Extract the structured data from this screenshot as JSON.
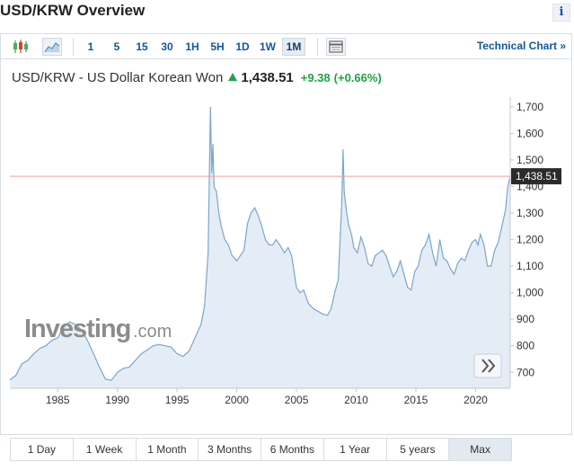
{
  "header": {
    "title": "USD/KRW Overview",
    "info_label": "i"
  },
  "toolbar": {
    "timeframes": [
      "1",
      "5",
      "15",
      "30",
      "1H",
      "5H",
      "1D",
      "1W",
      "1M"
    ],
    "active_timeframe": "1M",
    "technical_chart_label": "Technical Chart »",
    "icons": [
      "candlestick-icon",
      "area-chart-icon",
      "table-icon"
    ]
  },
  "quote": {
    "name": "USD/KRW - US Dollar Korean Won",
    "last": "1,438.51",
    "change": "+9.38",
    "change_pct": "(+0.66%)",
    "direction": "up"
  },
  "watermark": {
    "brand": "Investing",
    "suffix": ".com"
  },
  "range_buttons": [
    "1 Day",
    "1 Week",
    "1 Month",
    "3 Months",
    "6 Months",
    "1 Year",
    "5 years",
    "Max"
  ],
  "active_range": "Max",
  "colors": {
    "line": "#7aa6cc",
    "fill": "#e4edf6",
    "last_price_line": "#f0a0a0",
    "price_tag_bg": "#2b2b2b",
    "up": "#1fa346",
    "link": "#1256a0"
  },
  "chart_data": {
    "type": "area",
    "title": "USD/KRW - US Dollar Korean Won",
    "x_ticks": [
      1985,
      1990,
      1995,
      2000,
      2005,
      2010,
      2015,
      2020
    ],
    "y_ticks": [
      "1,700",
      "1,600",
      "1,500",
      "1,400",
      "1,300",
      "1,200",
      "1,100",
      "1,000",
      "900",
      "800",
      "700"
    ],
    "y_tick_values": [
      1700,
      1600,
      1500,
      1400,
      1300,
      1200,
      1100,
      1000,
      900,
      800,
      700
    ],
    "xlim": [
      1981,
      2022.9
    ],
    "ylim": [
      640,
      1730
    ],
    "last_value": 1438.51,
    "last_value_label": "1,438.51",
    "grid": false,
    "series": [
      {
        "x": [
          1981.0,
          1981.5,
          1982.0,
          1982.5,
          1983.0,
          1983.5,
          1984.0,
          1984.5,
          1985.0,
          1985.5,
          1986.0,
          1986.5,
          1987.0,
          1987.5,
          1988.0,
          1988.5,
          1989.0,
          1989.5,
          1990.0,
          1990.5,
          1991.0,
          1991.5,
          1992.0,
          1992.5,
          1993.0,
          1993.5,
          1994.0,
          1994.5,
          1995.0,
          1995.5,
          1996.0,
          1996.5,
          1997.0,
          1997.3,
          1997.6,
          1997.8,
          1997.9,
          1998.0,
          1998.1,
          1998.3,
          1998.5,
          1998.7,
          1999.0,
          1999.3,
          1999.6,
          2000.0,
          2000.3,
          2000.6,
          2000.9,
          2001.2,
          2001.5,
          2001.8,
          2002.1,
          2002.4,
          2002.7,
          2003.0,
          2003.3,
          2003.6,
          2004.0,
          2004.3,
          2004.6,
          2005.0,
          2005.3,
          2005.6,
          2006.0,
          2006.4,
          2006.8,
          2007.2,
          2007.6,
          2007.9,
          2008.2,
          2008.5,
          2008.8,
          2008.9,
          2009.0,
          2009.2,
          2009.4,
          2009.6,
          2009.8,
          2010.1,
          2010.4,
          2010.7,
          2011.0,
          2011.3,
          2011.6,
          2011.9,
          2012.2,
          2012.5,
          2012.8,
          2013.1,
          2013.4,
          2013.7,
          2014.0,
          2014.3,
          2014.6,
          2014.9,
          2015.2,
          2015.5,
          2015.8,
          2016.1,
          2016.4,
          2016.7,
          2017.0,
          2017.3,
          2017.6,
          2017.9,
          2018.2,
          2018.5,
          2018.8,
          2019.1,
          2019.4,
          2019.7,
          2020.0,
          2020.2,
          2020.4,
          2020.7,
          2021.0,
          2021.3,
          2021.6,
          2021.9,
          2022.2,
          2022.5,
          2022.7,
          2022.9
        ],
        "y": [
          672,
          688,
          732,
          745,
          770,
          790,
          800,
          820,
          830,
          870,
          890,
          880,
          860,
          820,
          770,
          720,
          675,
          670,
          700,
          715,
          720,
          745,
          770,
          785,
          800,
          805,
          800,
          795,
          770,
          760,
          780,
          830,
          880,
          950,
          1150,
          1700,
          1450,
          1560,
          1400,
          1380,
          1300,
          1250,
          1200,
          1180,
          1140,
          1120,
          1140,
          1160,
          1260,
          1300,
          1320,
          1290,
          1250,
          1200,
          1180,
          1180,
          1200,
          1180,
          1150,
          1170,
          1140,
          1020,
          1000,
          1010,
          960,
          940,
          930,
          920,
          915,
          940,
          1000,
          1050,
          1350,
          1540,
          1380,
          1300,
          1250,
          1220,
          1170,
          1150,
          1210,
          1170,
          1110,
          1100,
          1140,
          1150,
          1160,
          1140,
          1100,
          1060,
          1080,
          1120,
          1070,
          1020,
          1010,
          1080,
          1100,
          1160,
          1180,
          1220,
          1150,
          1100,
          1200,
          1130,
          1120,
          1090,
          1070,
          1110,
          1130,
          1120,
          1160,
          1190,
          1200,
          1180,
          1220,
          1180,
          1100,
          1100,
          1160,
          1190,
          1250,
          1310,
          1400,
          1438.51
        ]
      }
    ]
  }
}
